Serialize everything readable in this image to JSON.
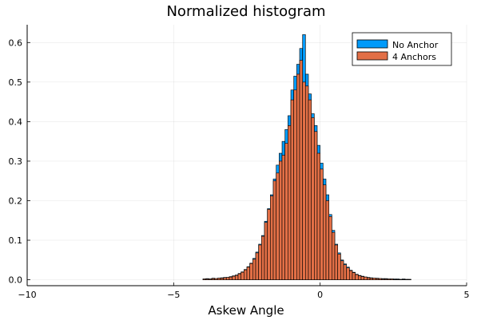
{
  "chart_data": {
    "type": "bar",
    "title": "Normalized histogram",
    "xlabel": "Askew Angle",
    "ylabel": "",
    "xlim": [
      -10,
      5
    ],
    "ylim": [
      -0.015,
      0.645
    ],
    "grid": true,
    "legend_position": "top-right",
    "x_ticks": [
      {
        "value": -10,
        "label": "−10"
      },
      {
        "value": -5,
        "label": "−5"
      },
      {
        "value": 0,
        "label": "0"
      },
      {
        "value": 5,
        "label": "5"
      }
    ],
    "y_ticks": [
      {
        "value": 0.0,
        "label": "0.0"
      },
      {
        "value": 0.1,
        "label": "0.1"
      },
      {
        "value": 0.2,
        "label": "0.2"
      },
      {
        "value": 0.3,
        "label": "0.3"
      },
      {
        "value": 0.4,
        "label": "0.4"
      },
      {
        "value": 0.5,
        "label": "0.5"
      },
      {
        "value": 0.6,
        "label": "0.6"
      }
    ],
    "bin_width": 0.1,
    "x_bin_starts": [
      -4.0,
      -3.9,
      -3.8,
      -3.7,
      -3.6,
      -3.5,
      -3.4,
      -3.3,
      -3.2,
      -3.1,
      -3.0,
      -2.9,
      -2.8,
      -2.7,
      -2.6,
      -2.5,
      -2.4,
      -2.3,
      -2.2,
      -2.1,
      -2.0,
      -1.9,
      -1.8,
      -1.7,
      -1.6,
      -1.5,
      -1.4,
      -1.3,
      -1.2,
      -1.1,
      -1.0,
      -0.9,
      -0.8,
      -0.7,
      -0.6,
      -0.5,
      -0.4,
      -0.3,
      -0.2,
      -0.1,
      0.0,
      0.1,
      0.2,
      0.3,
      0.4,
      0.5,
      0.6,
      0.7,
      0.8,
      0.9,
      1.0,
      1.1,
      1.2,
      1.3,
      1.4,
      1.5,
      1.6,
      1.7,
      1.8,
      1.9,
      2.0,
      2.1,
      2.2,
      2.3,
      2.4,
      2.5,
      2.6,
      2.7,
      2.8,
      2.9,
      3.0
    ],
    "series": [
      {
        "name": "No Anchor",
        "color": "#009af9",
        "values": [
          0.002,
          0.003,
          0.002,
          0.004,
          0.003,
          0.004,
          0.005,
          0.006,
          0.006,
          0.008,
          0.01,
          0.012,
          0.016,
          0.02,
          0.026,
          0.033,
          0.042,
          0.054,
          0.07,
          0.09,
          0.112,
          0.148,
          0.18,
          0.215,
          0.255,
          0.29,
          0.32,
          0.35,
          0.38,
          0.415,
          0.48,
          0.515,
          0.545,
          0.585,
          0.62,
          0.52,
          0.47,
          0.42,
          0.39,
          0.34,
          0.295,
          0.255,
          0.215,
          0.165,
          0.125,
          0.09,
          0.068,
          0.05,
          0.04,
          0.032,
          0.024,
          0.019,
          0.014,
          0.011,
          0.009,
          0.007,
          0.006,
          0.005,
          0.004,
          0.004,
          0.003,
          0.003,
          0.003,
          0.002,
          0.002,
          0.002,
          0.002,
          0.001,
          0.002,
          0.001,
          0.001
        ]
      },
      {
        "name": "4 Anchors",
        "color": "#e26f46",
        "values": [
          0.002,
          0.002,
          0.002,
          0.003,
          0.003,
          0.004,
          0.004,
          0.005,
          0.006,
          0.007,
          0.009,
          0.011,
          0.015,
          0.019,
          0.025,
          0.032,
          0.041,
          0.052,
          0.068,
          0.088,
          0.11,
          0.145,
          0.178,
          0.212,
          0.25,
          0.27,
          0.3,
          0.315,
          0.345,
          0.39,
          0.455,
          0.48,
          0.52,
          0.555,
          0.5,
          0.49,
          0.455,
          0.41,
          0.375,
          0.32,
          0.28,
          0.24,
          0.2,
          0.16,
          0.12,
          0.088,
          0.065,
          0.048,
          0.038,
          0.03,
          0.023,
          0.018,
          0.013,
          0.01,
          0.008,
          0.007,
          0.005,
          0.004,
          0.004,
          0.003,
          0.003,
          0.002,
          0.002,
          0.002,
          0.002,
          0.001,
          0.001,
          0.001,
          0.001,
          0.001,
          0.001
        ]
      }
    ]
  }
}
